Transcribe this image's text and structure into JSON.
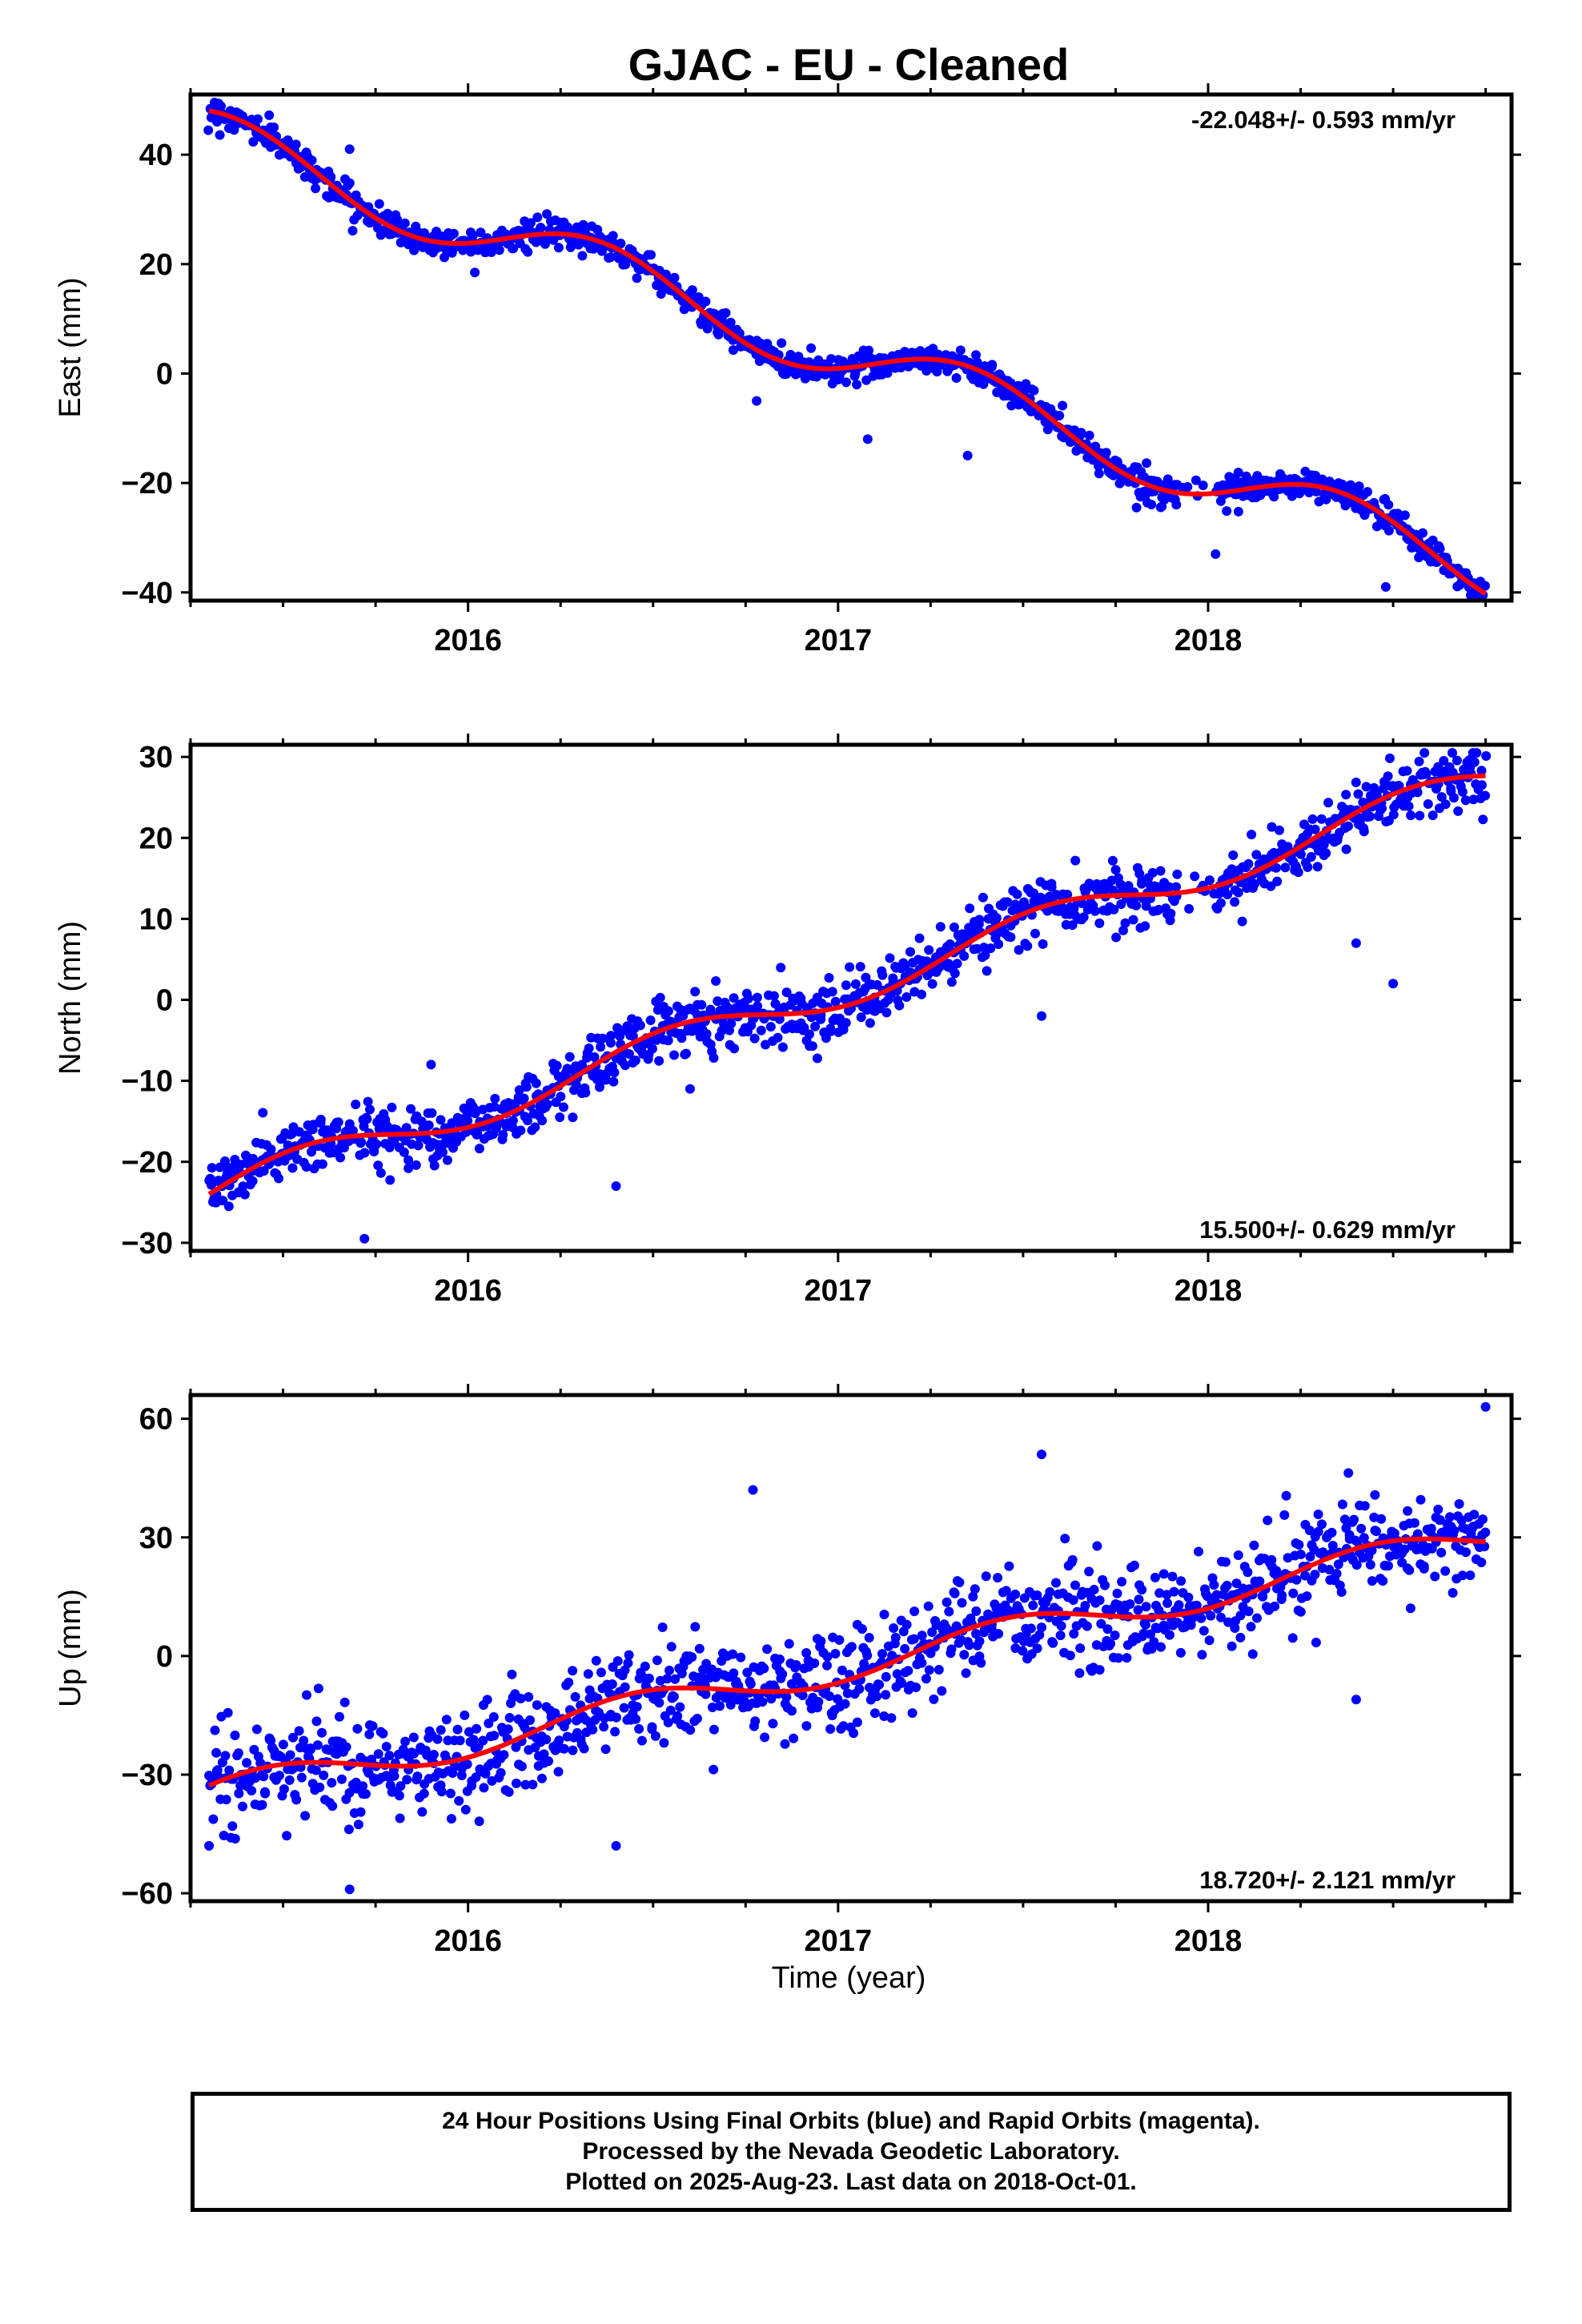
{
  "title": "GJAC  - EU - Cleaned",
  "xlabel": "Time (year)",
  "footer": {
    "line1": "24 Hour Positions Using Final Orbits (blue) and Rapid Orbits (magenta).",
    "line2": "Processed by the Nevada Geodetic Laboratory.",
    "line3": "Plotted on 2025-Aug-23. Last data on 2018-Oct-01."
  },
  "colors": {
    "points": "#0000ff",
    "model": "#ff0000",
    "frame": "#000000"
  },
  "chart_data": [
    {
      "type": "scatter",
      "ylabel": "East (mm)",
      "rate_label": "-22.048+/- 0.593 mm/yr",
      "rate_position": "top-right",
      "xlim": [
        2015.25,
        2018.82
      ],
      "ylim": [
        -41.5,
        51
      ],
      "xticks": [
        2016,
        2017,
        2018
      ],
      "yticks": [
        -40,
        -20,
        0,
        20,
        40
      ],
      "trend": {
        "x": [
          2015.3,
          2018.75
        ],
        "y": [
          43,
          -36
        ],
        "rate": -22.048
      },
      "seasonal": [
        {
          "amp": 5.3,
          "phase": 1.25,
          "x0": 2015.3
        }
      ],
      "noise": 1.3,
      "outliers": {
        "x": [
          2015.68,
          2016.78,
          2017.08,
          2017.35,
          2018.02,
          2018.48
        ],
        "y": [
          41,
          -5,
          -12,
          -15,
          -33,
          -39
        ]
      },
      "n_points": 1150
    },
    {
      "type": "scatter",
      "ylabel": "North (mm)",
      "rate_label": "15.500+/- 0.629 mm/yr",
      "rate_position": "bottom-right",
      "xlim": [
        2015.25,
        2018.82
      ],
      "ylim": [
        -31,
        31.5
      ],
      "xticks": [
        2016,
        2017,
        2018
      ],
      "yticks": [
        -30,
        -20,
        -10,
        0,
        10,
        20,
        30
      ],
      "trend": {
        "x": [
          2015.3,
          2018.75
        ],
        "y": [
          -24,
          27
        ],
        "rate": 15.5
      },
      "seasonal": [
        {
          "amp": 2.2,
          "phase": 0.0,
          "x0": 2015.3
        }
      ],
      "noise": 1.8,
      "outliers": {
        "x": [
          2015.72,
          2015.9,
          2016.4,
          2017.55,
          2018.4,
          2018.5,
          2016.6
        ],
        "y": [
          -29.5,
          -8,
          -23,
          -2,
          7,
          2,
          -11
        ]
      },
      "n_points": 1150
    },
    {
      "type": "scatter",
      "ylabel": "Up (mm)",
      "rate_label": "18.720+/- 2.121 mm/yr",
      "rate_position": "bottom-right",
      "xlim": [
        2015.25,
        2018.82
      ],
      "ylim": [
        -62,
        66
      ],
      "xticks": [
        2016,
        2017,
        2018
      ],
      "yticks": [
        -60,
        -30,
        0,
        30,
        60
      ],
      "trend": {
        "x": [
          2015.3,
          2018.75
        ],
        "y": [
          -35,
          30
        ],
        "rate": 18.72
      },
      "seasonal": [
        {
          "amp": 4.0,
          "phase": 0.6,
          "x0": 2015.3
        }
      ],
      "noise": 6.5,
      "outliers": {
        "x": [
          2015.3,
          2015.68,
          2016.4,
          2016.77,
          2017.55,
          2018.4,
          2018.75
        ],
        "y": [
          -48,
          -59,
          -48,
          42,
          51,
          -11,
          63
        ]
      },
      "n_points": 1150
    }
  ]
}
